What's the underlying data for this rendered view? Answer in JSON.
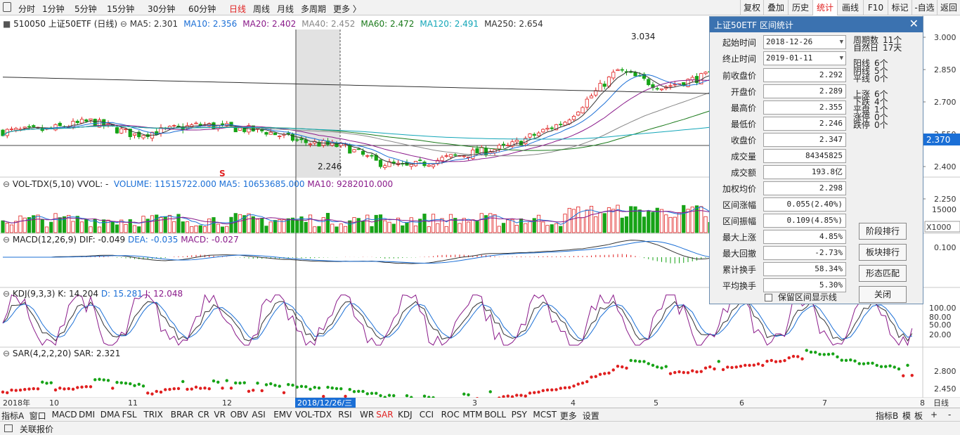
{
  "toolbar": {
    "periods": [
      "分时",
      "1分钟",
      "5分钟",
      "15分钟",
      "30分钟",
      "60分钟",
      "日线",
      "周线",
      "月线",
      "多周期",
      "更多 〉"
    ],
    "active_period": "日线",
    "right_buttons": [
      "复权",
      "叠加",
      "历史",
      "统计",
      "画线",
      "F10",
      "标记",
      "-自选",
      "返回"
    ],
    "active_right": "统计"
  },
  "price_panel": {
    "code_name": "510050 上证50ETF (日线)",
    "ma": [
      {
        "label": "MA5: 2.301",
        "color": "#333333"
      },
      {
        "label": "MA10: 2.356",
        "color": "#1b6fd6"
      },
      {
        "label": "MA20: 2.402",
        "color": "#8a1a8a"
      },
      {
        "label": "MA40: 2.452",
        "color": "#888888"
      },
      {
        "label": "MA60: 2.472",
        "color": "#1a7a1a"
      },
      {
        "label": "MA120: 2.491",
        "color": "#13a6b8"
      },
      {
        "label": "MA250: 2.654",
        "color": "#333333"
      }
    ],
    "y_ticks": [
      "3.000",
      "2.850",
      "2.700",
      "2.550",
      "2.400",
      "2.250"
    ],
    "current_price": "2.370",
    "high_label": "3.034",
    "low_label": "2.246",
    "s_marker": "S"
  },
  "vol_panel": {
    "title": "VOL-TDX(5,10)",
    "vvol": "VVOL: -",
    "volume": "VOLUME: 11515722.000",
    "ma5": "MA5: 10653685.000",
    "ma10": "MA10: 9282010.000",
    "y_tick": "15000",
    "unit": "X1000"
  },
  "macd_panel": {
    "title": "MACD(12,26,9)",
    "dif": "DIF: -0.049",
    "dea": "DEA: -0.035",
    "macd": "MACD: -0.027",
    "y_tick": "0.100"
  },
  "kdj_panel": {
    "title": "KDJ(9,3,3)",
    "k": "K: 14.204",
    "d": "D: 15.281",
    "j": "J: 12.048",
    "y_ticks": [
      "100.00",
      "80.00",
      "50.00",
      "20.00"
    ]
  },
  "sar_panel": {
    "title": "SAR(4,2,2,20)",
    "sar": "SAR: 2.321",
    "y_ticks": [
      "2.800",
      "2.450"
    ]
  },
  "time_axis": {
    "labels": [
      "2018年",
      "10",
      "11",
      "12",
      "2018/12/26/三",
      "3",
      "4",
      "5",
      "6",
      "7",
      "8"
    ],
    "right_label": "日线"
  },
  "indicator_tabs": {
    "labels": [
      "指标A",
      "窗口",
      "MACD",
      "DMI",
      "DMA",
      "FSL",
      "TRIX",
      "BRAR",
      "CR",
      "VR",
      "OBV",
      "ASI",
      "EMV",
      "VOL-TDX",
      "RSI",
      "WR",
      "SAR",
      "KDJ",
      "CCI",
      "ROC",
      "MTM",
      "BOLL",
      "PSY",
      "MCST",
      "更多",
      "设置"
    ],
    "active": "SAR",
    "right": [
      "指标B",
      "模",
      "板",
      "+",
      "-"
    ]
  },
  "status_bar": {
    "label": "关联报价"
  },
  "dialog": {
    "title": "上证50ETF 区间统计",
    "start_label": "起始时间",
    "start_value": "2018-12-26",
    "end_label": "终止时间",
    "end_value": "2019-01-11",
    "rows": [
      {
        "label": "前收盘价",
        "value": "2.292"
      },
      {
        "label": "开盘价",
        "value": "2.289"
      },
      {
        "label": "最高价",
        "value": "2.355"
      },
      {
        "label": "最低价",
        "value": "2.246"
      },
      {
        "label": "收盘价",
        "value": "2.347"
      },
      {
        "label": "成交量",
        "value": "84345825"
      },
      {
        "label": "成交额",
        "value": "193.8亿"
      },
      {
        "label": "加权均价",
        "value": "2.298"
      },
      {
        "label": "区间涨幅",
        "value": "0.055(2.40%)"
      },
      {
        "label": "区间振幅",
        "value": "0.109(4.85%)"
      },
      {
        "label": "最大上涨",
        "value": "4.85%"
      },
      {
        "label": "最大回撤",
        "value": "-2.73%"
      },
      {
        "label": "累计换手",
        "value": "58.34%"
      },
      {
        "label": "平均换手",
        "value": "5.30%"
      }
    ],
    "side_stats": [
      [
        "周期数",
        "11个"
      ],
      [
        "自然日",
        "17天"
      ],
      [
        "",
        ""
      ],
      [
        "阳线",
        "6个"
      ],
      [
        "阴线",
        "5个"
      ],
      [
        "平线",
        "0个"
      ],
      [
        "",
        ""
      ],
      [
        "上涨",
        "6个"
      ],
      [
        "下跌",
        "4个"
      ],
      [
        "平盘",
        "1个"
      ],
      [
        "涨停",
        "0个"
      ],
      [
        "跌停",
        "0个"
      ]
    ],
    "buttons": [
      "阶段排行",
      "板块排行",
      "形态匹配",
      "关闭"
    ],
    "checkbox_label": "保留区间显示线"
  },
  "colors": {
    "up": "#e02020",
    "down": "#17a317",
    "active": "#e02020"
  }
}
